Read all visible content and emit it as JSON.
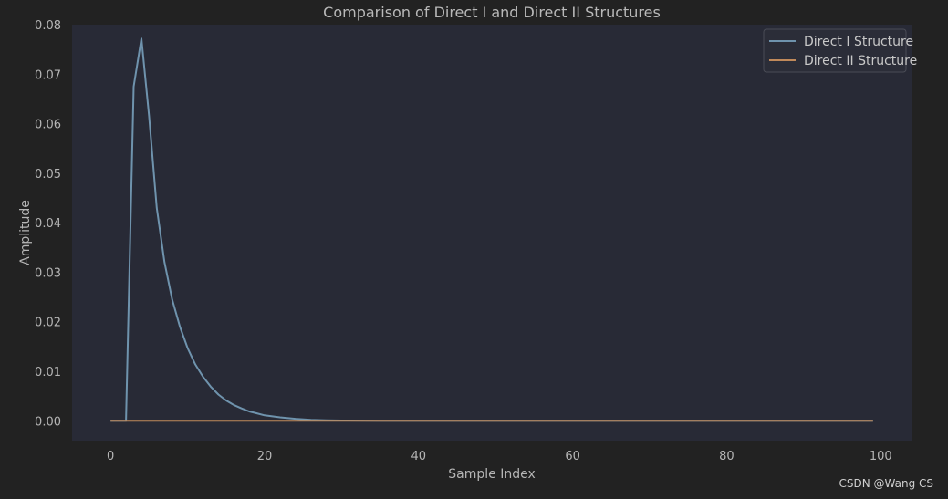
{
  "chart_data": {
    "type": "line",
    "title": "Comparison of Direct I and Direct II Structures",
    "xlabel": "Sample Index",
    "ylabel": "Amplitude",
    "xlim": [
      -5,
      104
    ],
    "ylim": [
      -0.004,
      0.08
    ],
    "xticks": [
      0,
      20,
      40,
      60,
      80,
      100
    ],
    "yticks": [
      0.0,
      0.01,
      0.02,
      0.03,
      0.04,
      0.05,
      0.06,
      0.07,
      0.08
    ],
    "ytick_labels": [
      "0.00",
      "0.01",
      "0.02",
      "0.03",
      "0.04",
      "0.05",
      "0.06",
      "0.07",
      "0.08"
    ],
    "grid": false,
    "legend_position": "top-right",
    "series": [
      {
        "name": "Direct I Structure",
        "color": "#6f93ad",
        "x": [
          0,
          1,
          2,
          3,
          4,
          5,
          6,
          7,
          8,
          9,
          10,
          11,
          12,
          13,
          14,
          15,
          16,
          17,
          18,
          19,
          20,
          22,
          24,
          26,
          28,
          30,
          35,
          40,
          50,
          60,
          70,
          80,
          90,
          99
        ],
        "y": [
          0,
          0,
          0,
          0.0675,
          0.0772,
          0.0615,
          0.043,
          0.032,
          0.0245,
          0.019,
          0.0147,
          0.0114,
          0.0089,
          0.0069,
          0.0053,
          0.0041,
          0.0032,
          0.0025,
          0.0019,
          0.0015,
          0.0011,
          0.0007,
          0.0004,
          0.0002,
          0.0001,
          5e-05,
          0,
          0,
          0,
          0,
          0,
          0,
          0,
          0
        ]
      },
      {
        "name": "Direct II Structure",
        "color": "#c0895a",
        "x": [
          0,
          99
        ],
        "y": [
          0,
          0
        ]
      }
    ]
  },
  "colors": {
    "figure_bg": "#222222",
    "plot_bg": "#282a36",
    "text": "#b5b5b5",
    "legend_bg": "#2b2d38",
    "legend_border": "#4a4c56"
  },
  "watermark": "CSDN @Wang CS"
}
